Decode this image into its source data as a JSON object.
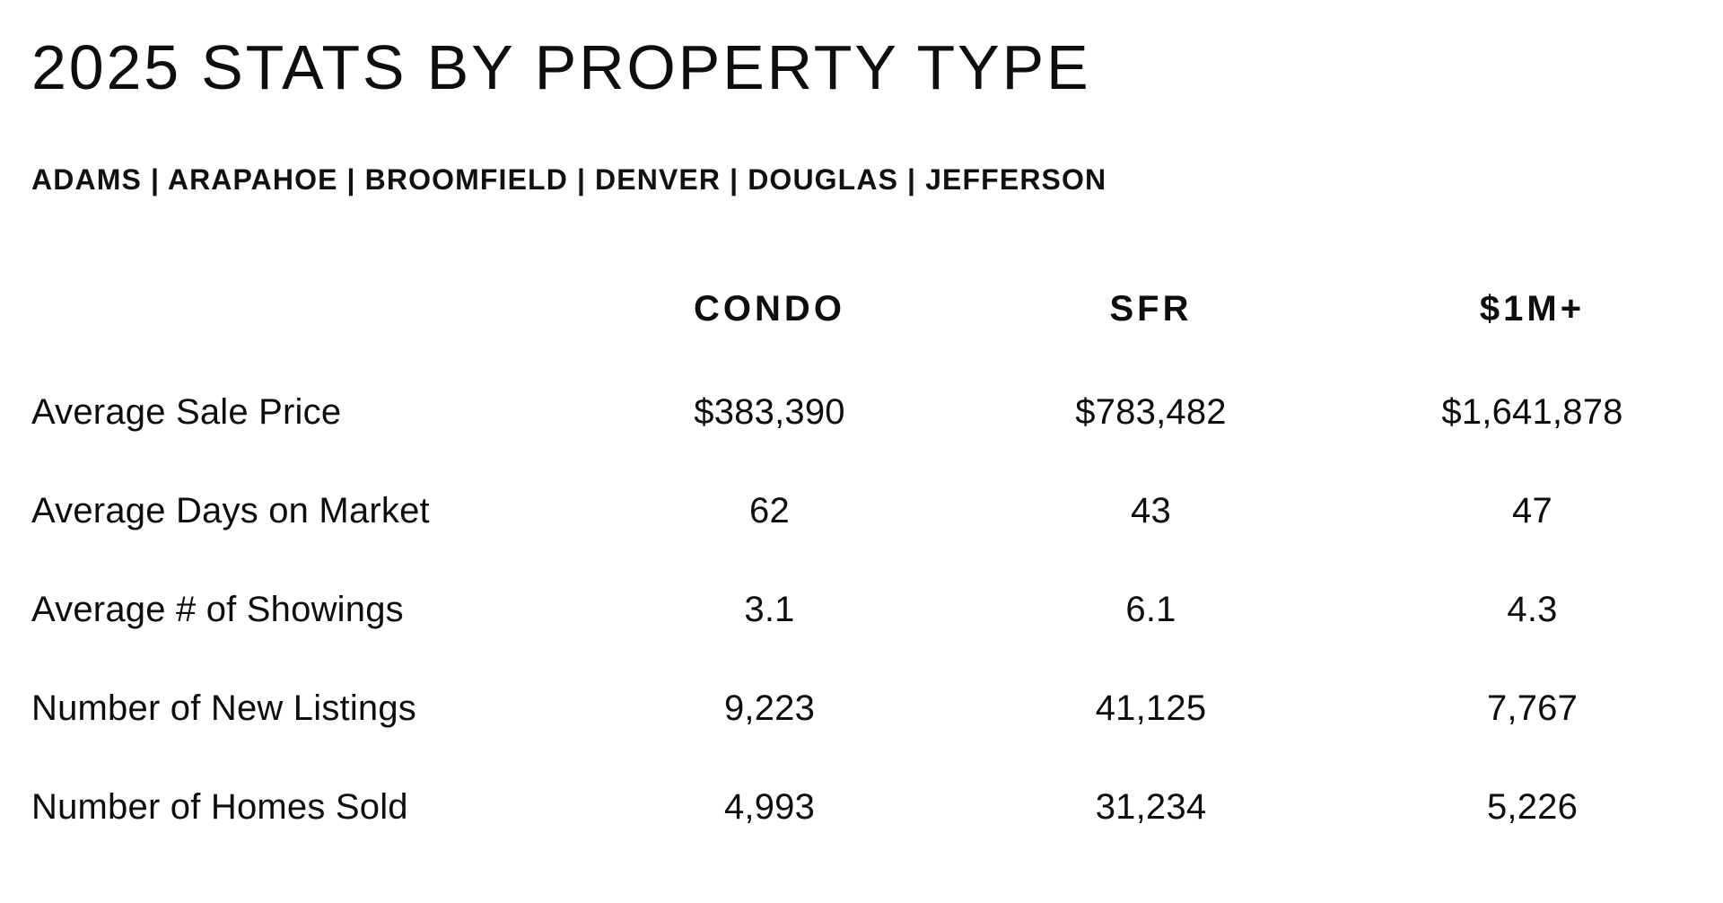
{
  "header": {
    "title": "2025 STATS BY PROPERTY TYPE",
    "counties": "ADAMS | ARAPAHOE | BROOMFIELD | DENVER | DOUGLAS | JEFFERSON"
  },
  "colors": {
    "background": "#ffffff",
    "text": "#0e0e0e"
  },
  "chart_data": {
    "type": "table",
    "title": "2025 STATS BY PROPERTY TYPE",
    "subtitle": "ADAMS | ARAPAHOE | BROOMFIELD | DENVER | DOUGLAS | JEFFERSON",
    "columns": [
      "CONDO",
      "SFR",
      "$1M+"
    ],
    "rows": [
      {
        "label": "Average Sale Price",
        "values": [
          "$383,390",
          "$783,482",
          "$1,641,878"
        ]
      },
      {
        "label": "Average Days on Market",
        "values": [
          "62",
          "43",
          "47"
        ]
      },
      {
        "label": "Average # of Showings",
        "values": [
          "3.1",
          "6.1",
          "4.3"
        ]
      },
      {
        "label": "Number of New Listings",
        "values": [
          "9,223",
          "41,125",
          "7,767"
        ]
      },
      {
        "label": "Number of Homes Sold",
        "values": [
          "4,993",
          "31,234",
          "5,226"
        ]
      }
    ],
    "numeric": {
      "average_sale_price": {
        "CONDO": 383390,
        "SFR": 783482,
        "$1M+": 1641878
      },
      "average_days_on_market": {
        "CONDO": 62,
        "SFR": 43,
        "$1M+": 47
      },
      "average_showings": {
        "CONDO": 3.1,
        "SFR": 6.1,
        "$1M+": 4.3
      },
      "new_listings": {
        "CONDO": 9223,
        "SFR": 41125,
        "$1M+": 7767
      },
      "homes_sold": {
        "CONDO": 4993,
        "SFR": 31234,
        "$1M+": 5226
      }
    }
  }
}
